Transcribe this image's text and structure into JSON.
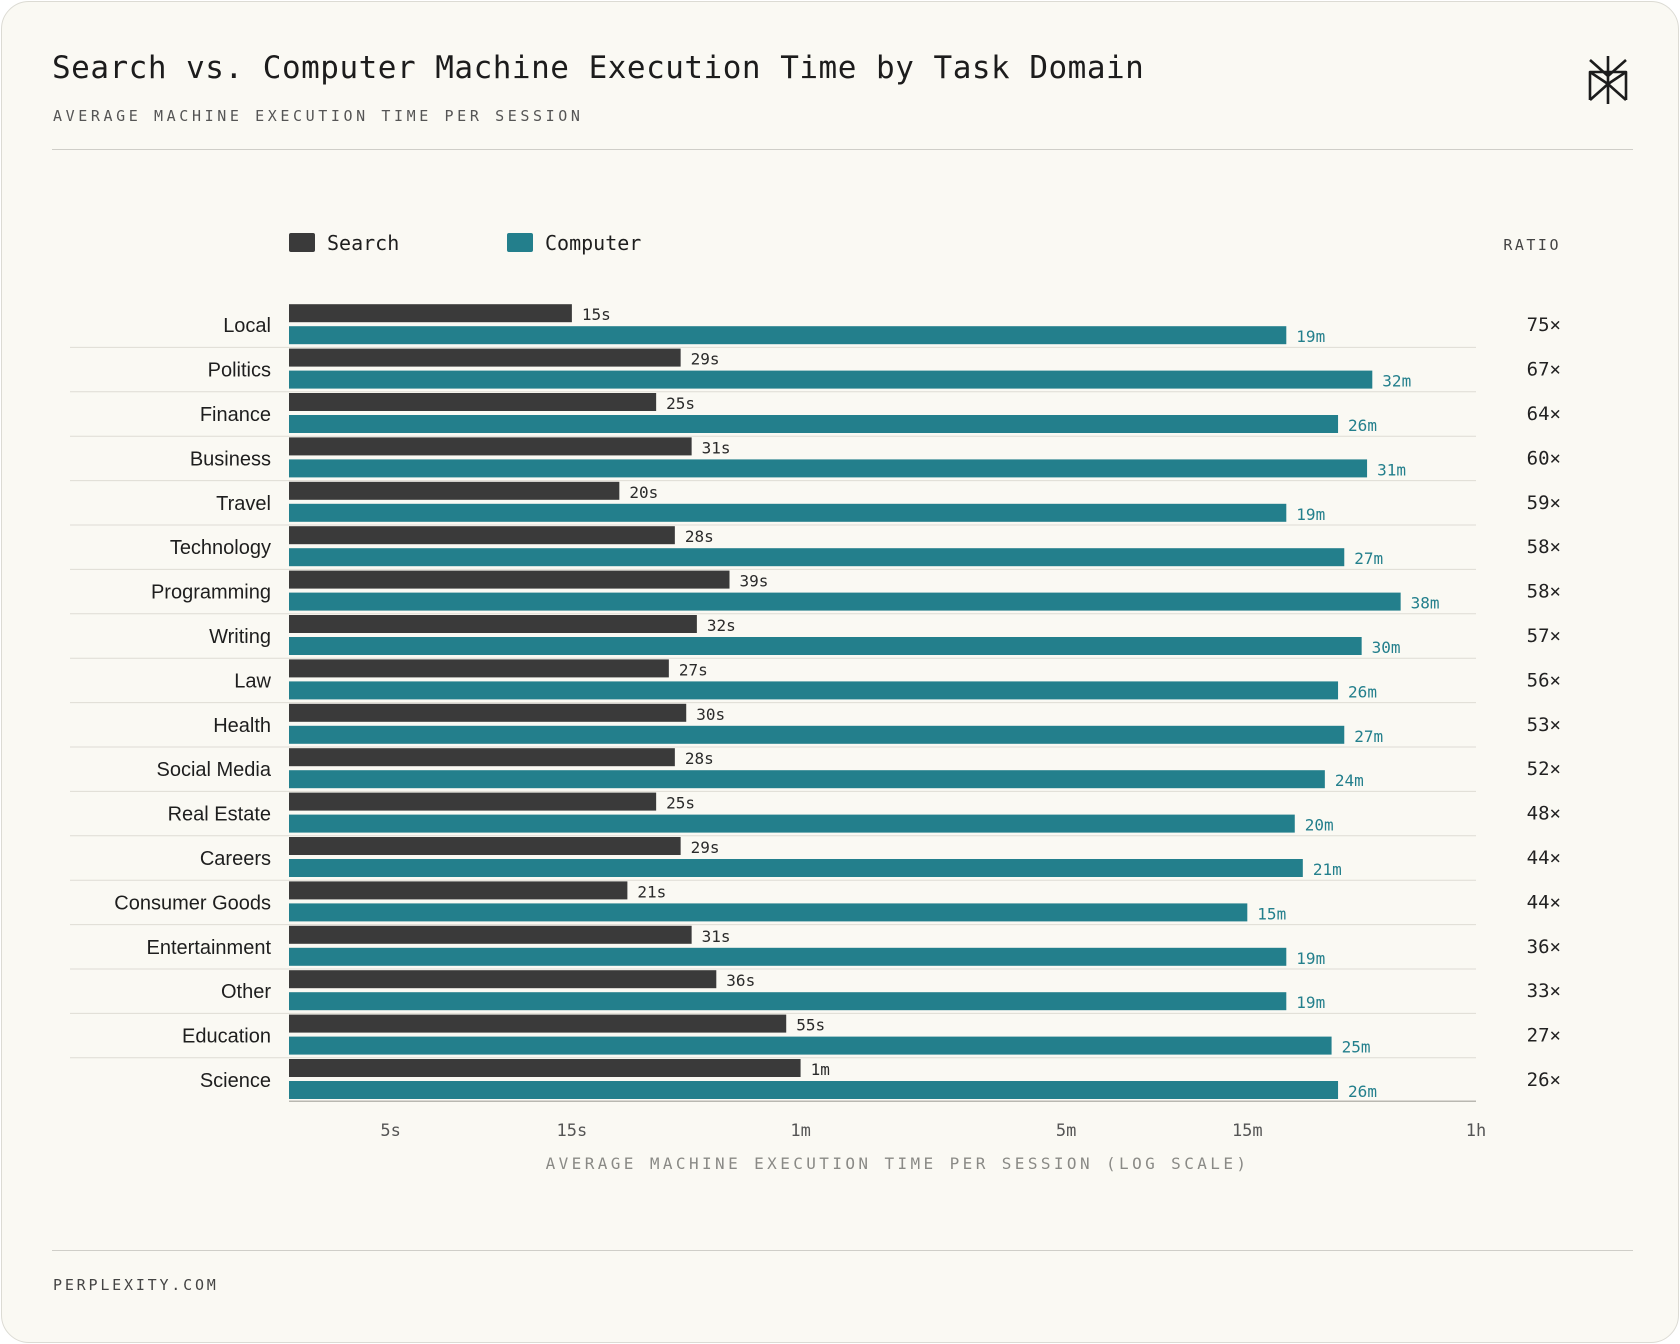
{
  "header": {
    "title": "Search vs. Computer Machine Execution Time by Task Domain",
    "subtitle": "AVERAGE MACHINE EXECUTION TIME PER SESSION"
  },
  "footer": {
    "text": "PERPLEXITY.COM"
  },
  "logo": {
    "icon": "perplexity-logo-icon"
  },
  "colors": {
    "search": "#3a3a3a",
    "computer": "#237f8c",
    "background": "#faf9f3"
  },
  "chart_data": {
    "type": "bar",
    "orientation": "horizontal",
    "categories": [
      "Local",
      "Politics",
      "Finance",
      "Business",
      "Travel",
      "Technology",
      "Programming",
      "Writing",
      "Law",
      "Health",
      "Social Media",
      "Real Estate",
      "Careers",
      "Consumer Goods",
      "Entertainment",
      "Other",
      "Education",
      "Science"
    ],
    "unit": "seconds",
    "series": [
      {
        "name": "Search",
        "values": [
          15,
          29,
          25,
          31,
          20,
          28,
          39,
          32,
          27,
          30,
          28,
          25,
          29,
          21,
          31,
          36,
          55,
          60
        ],
        "labels": [
          "15s",
          "29s",
          "25s",
          "31s",
          "20s",
          "28s",
          "39s",
          "32s",
          "27s",
          "30s",
          "28s",
          "25s",
          "29s",
          "21s",
          "31s",
          "36s",
          "55s",
          "1m"
        ]
      },
      {
        "name": "Computer",
        "values": [
          1140,
          1920,
          1560,
          1860,
          1140,
          1620,
          2280,
          1800,
          1560,
          1620,
          1440,
          1200,
          1260,
          900,
          1140,
          1140,
          1500,
          1560
        ],
        "labels": [
          "19m",
          "32m",
          "26m",
          "31m",
          "19m",
          "27m",
          "38m",
          "30m",
          "26m",
          "27m",
          "24m",
          "20m",
          "21m",
          "15m",
          "19m",
          "19m",
          "25m",
          "26m"
        ]
      }
    ],
    "ratio_header": "RATIO",
    "ratios": [
      "75×",
      "67×",
      "64×",
      "60×",
      "59×",
      "58×",
      "58×",
      "57×",
      "56×",
      "53×",
      "52×",
      "48×",
      "44×",
      "44×",
      "36×",
      "33×",
      "27×",
      "26×"
    ],
    "xscale": "log",
    "xlim": [
      2.7,
      3600
    ],
    "xticks": [
      5,
      15,
      60,
      300,
      900,
      3600
    ],
    "xtick_labels": [
      "5s",
      "15s",
      "1m",
      "5m",
      "15m",
      "1h"
    ],
    "xlabel": "AVERAGE MACHINE EXECUTION TIME PER SESSION (LOG SCALE)",
    "legend": "top-left"
  }
}
